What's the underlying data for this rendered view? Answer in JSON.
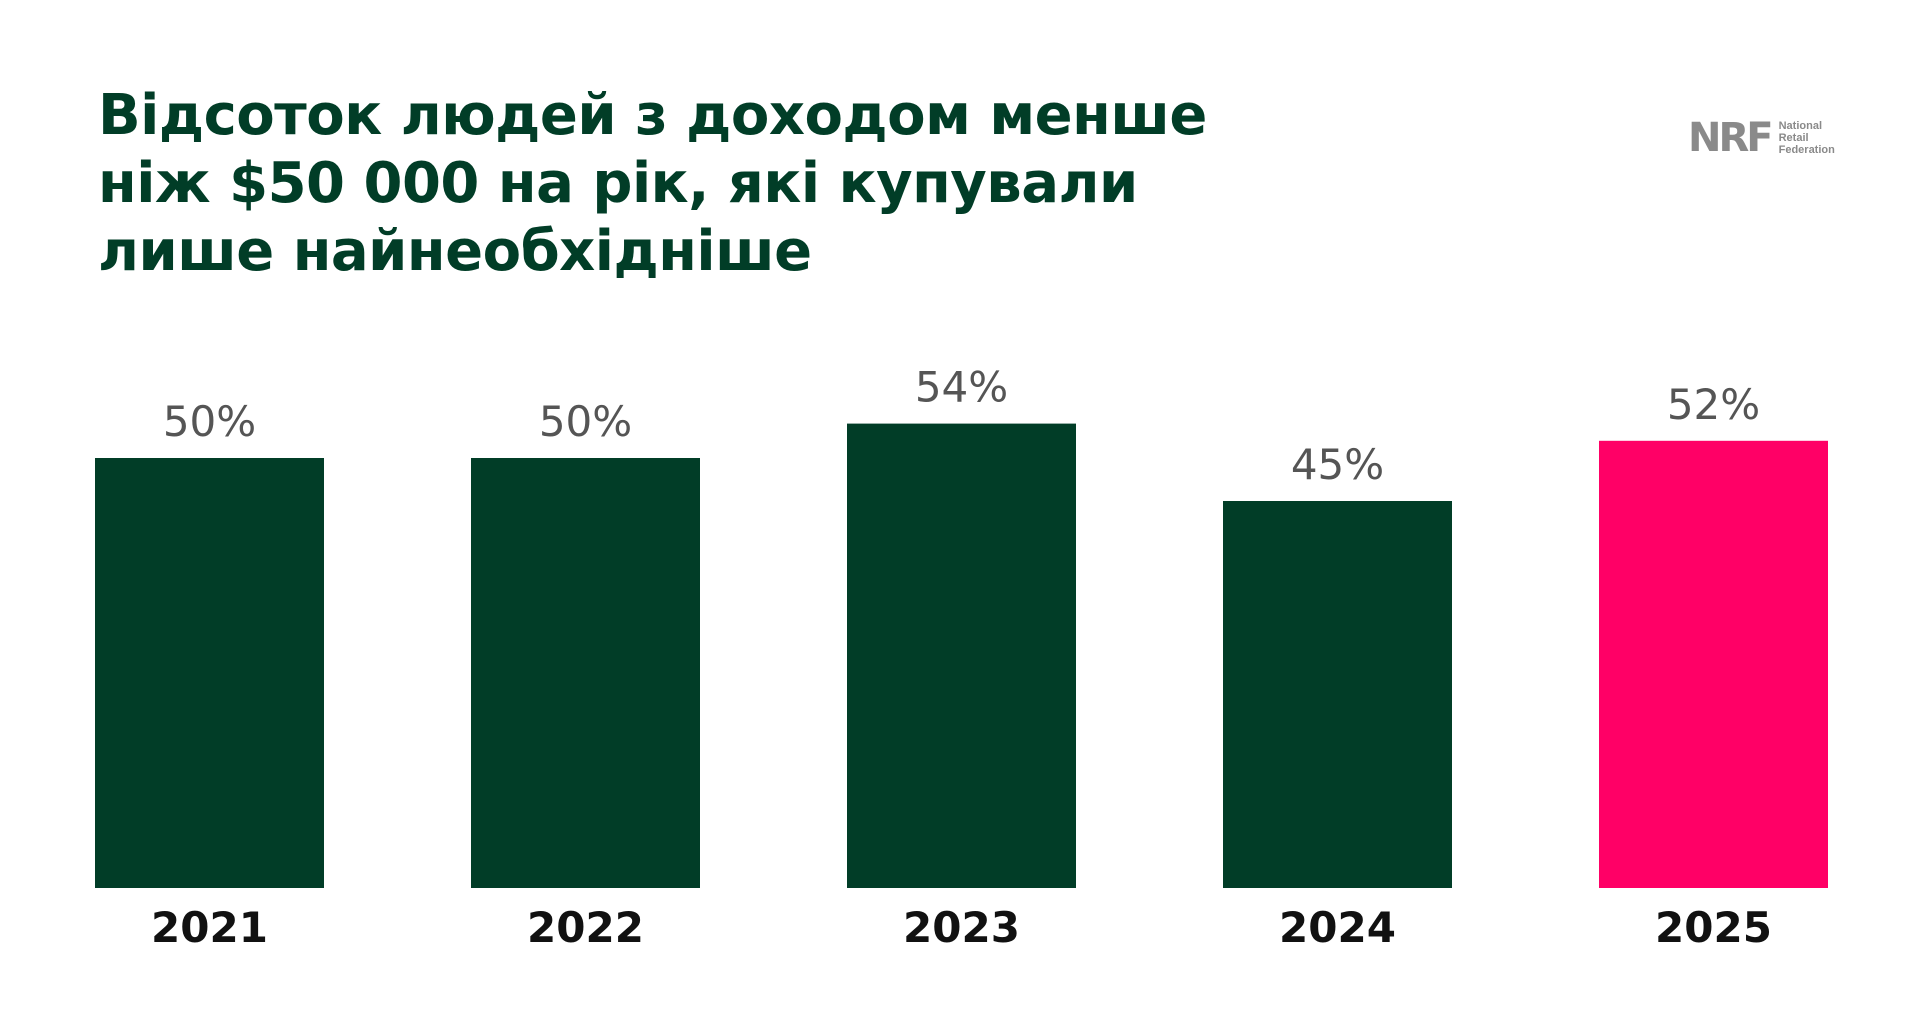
{
  "header": {
    "title_lines": [
      "Відсоток людей з доходом менше",
      "ніж $50 000 на рік, які купували",
      "лише найнеобхідніше"
    ]
  },
  "logo": {
    "mark": "NRF",
    "text_lines": [
      "National",
      "Retail",
      "Federation"
    ]
  },
  "colors": {
    "primary": "#013d27",
    "highlight": "#ff0066",
    "value_label": "#555555",
    "category_label": "#111111"
  },
  "chart_data": {
    "type": "bar",
    "categories": [
      "2021",
      "2022",
      "2023",
      "2024",
      "2025"
    ],
    "values": [
      50,
      50,
      54,
      45,
      52
    ],
    "value_labels": [
      "50%",
      "50%",
      "54%",
      "45%",
      "52%"
    ],
    "highlight_index": 4,
    "ylim": [
      0,
      54
    ],
    "title": "Відсоток людей з доходом менше ніж $50 000 на рік, які купували лише найнеобхідніше",
    "grid": false,
    "legend": "none"
  }
}
